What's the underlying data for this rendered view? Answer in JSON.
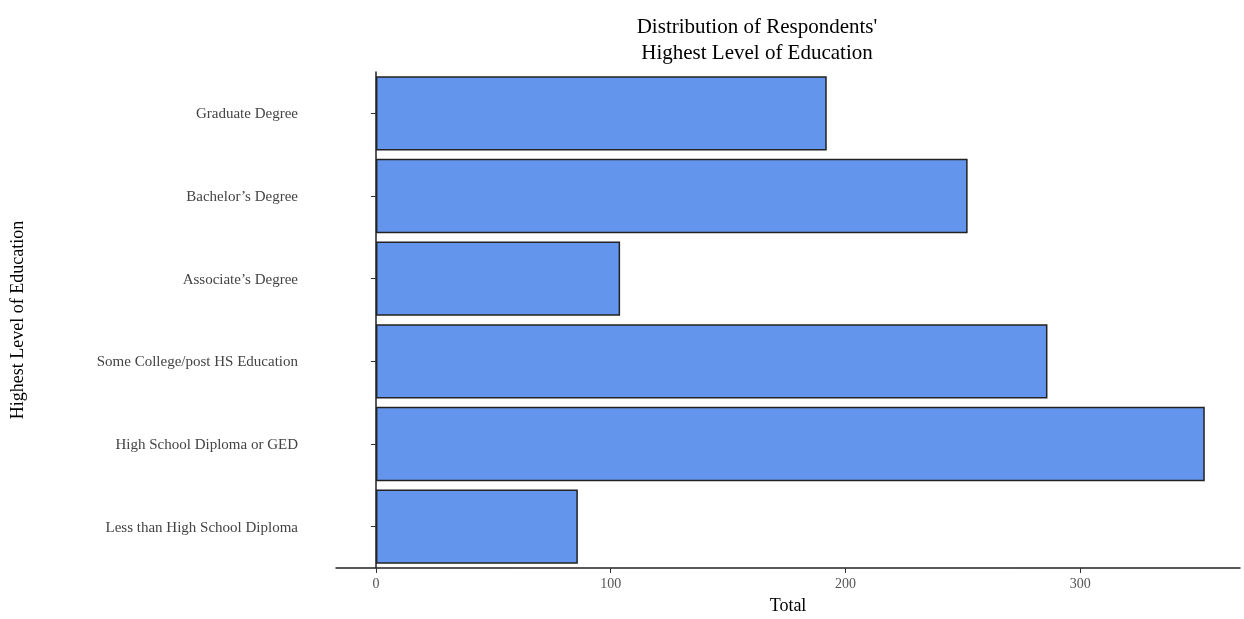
{
  "chart_data": {
    "type": "bar",
    "orientation": "horizontal",
    "title": "Distribution of Respondents'\nHighest Level of Education",
    "xlabel": "Total",
    "ylabel": "Highest Level of Education",
    "categories": [
      "Graduate Degree",
      "Bachelor’s Degree",
      "Associate’s Degree",
      "Some College/post HS Education",
      "High School Diploma or GED",
      "Less than High School Diploma"
    ],
    "values": [
      192,
      252,
      104,
      286,
      353,
      86
    ],
    "color": "#6495ed",
    "xlim": [
      -17,
      368
    ],
    "xticks": [
      0,
      100,
      200,
      300
    ]
  }
}
